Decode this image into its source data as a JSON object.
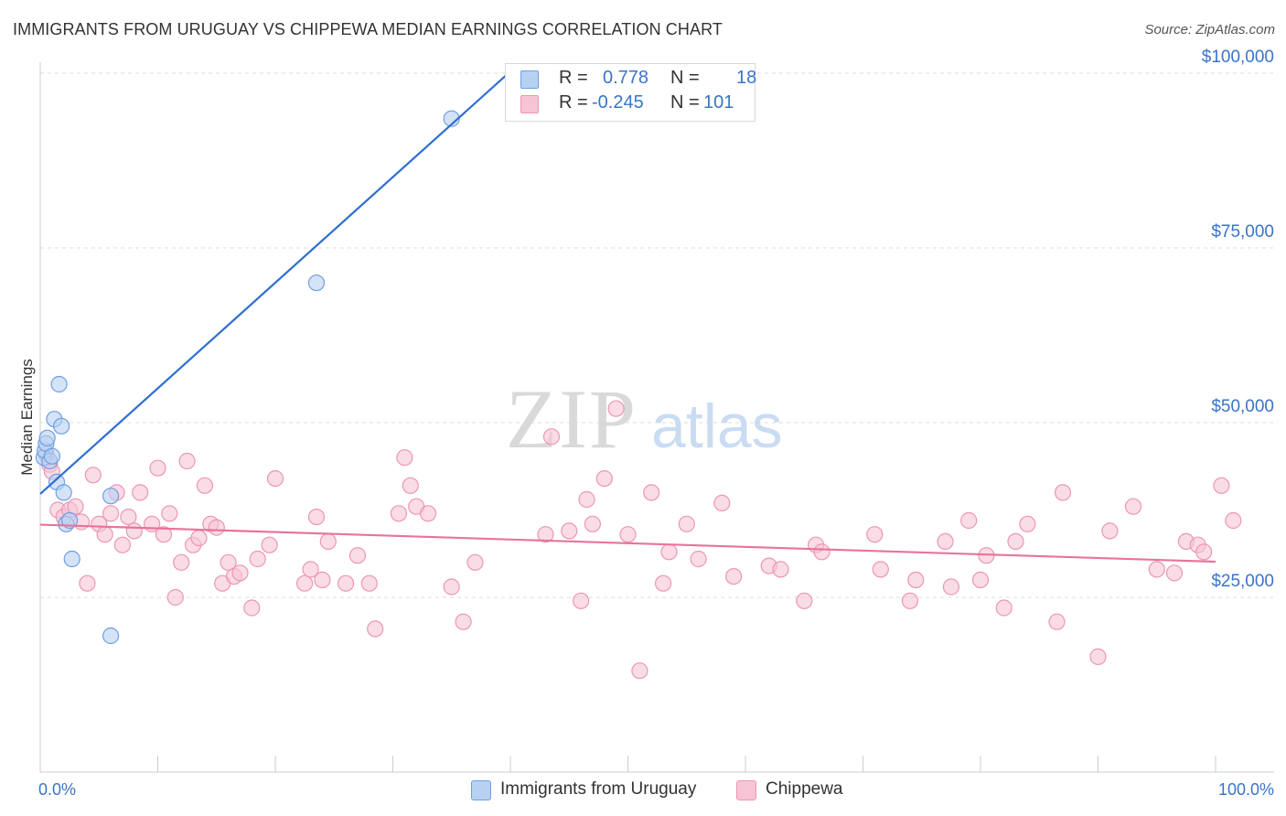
{
  "title": "IMMIGRANTS FROM URUGUAY VS CHIPPEWA MEDIAN EARNINGS CORRELATION CHART",
  "source": "Source: ZipAtlas.com",
  "watermark": {
    "zip": "ZIP",
    "atlas": "atlas"
  },
  "legend": {
    "r_label": "R =",
    "n_label": "N =",
    "rows": [
      {
        "r": "0.778",
        "n": "18"
      },
      {
        "r": "-0.245",
        "n": "101"
      }
    ]
  },
  "bottom_legend": [
    "Immigrants from Uruguay",
    "Chippewa"
  ],
  "colors": {
    "blue_fill": "#b8d1f3",
    "blue_stroke": "#6f9fe0",
    "blue_line": "#2f6fd0",
    "pink_fill": "#f7c4d5",
    "pink_stroke": "#ec96b4",
    "pink_line": "#e8739b",
    "axis_text": "#3a74c9"
  },
  "chart_data": {
    "type": "scatter",
    "ylabel": "Median Earnings",
    "x_tick_labels": [
      "0.0%",
      "100.0%"
    ],
    "y_tick_labels": [
      "$25,000",
      "$50,000",
      "$75,000",
      "$100,000"
    ],
    "y_ticks": [
      25000,
      50000,
      75000,
      100000
    ],
    "xlim": [
      0,
      100
    ],
    "ylim": [
      5000,
      107000
    ],
    "grid": true,
    "legend_position": "top-center",
    "series": [
      {
        "name": "Immigrants from Uruguay",
        "points": [
          [
            0.3,
            45000
          ],
          [
            0.4,
            46000
          ],
          [
            0.5,
            47000
          ],
          [
            0.6,
            47800
          ],
          [
            0.8,
            44500
          ],
          [
            1.0,
            45200
          ],
          [
            1.2,
            50500
          ],
          [
            1.4,
            41500
          ],
          [
            1.6,
            55500
          ],
          [
            1.8,
            49500
          ],
          [
            2.0,
            40000
          ],
          [
            2.2,
            35500
          ],
          [
            2.5,
            36000
          ],
          [
            2.7,
            30500
          ],
          [
            6.0,
            39500
          ],
          [
            6.0,
            19500
          ],
          [
            23.5,
            70000
          ],
          [
            35.0,
            93500
          ]
        ],
        "trend": {
          "x": [
            0,
            40.5
          ],
          "y": [
            39800,
            101000
          ]
        }
      },
      {
        "name": "Chippewa",
        "points": [
          [
            0.5,
            45500
          ],
          [
            0.8,
            44000
          ],
          [
            1.0,
            43000
          ],
          [
            1.5,
            37500
          ],
          [
            2.0,
            36500
          ],
          [
            2.5,
            37500
          ],
          [
            3.0,
            38000
          ],
          [
            3.5,
            35800
          ],
          [
            4.0,
            27000
          ],
          [
            4.5,
            42500
          ],
          [
            5.0,
            35500
          ],
          [
            5.5,
            34000
          ],
          [
            6.0,
            37000
          ],
          [
            6.5,
            40000
          ],
          [
            7.0,
            32500
          ],
          [
            7.5,
            36500
          ],
          [
            8.0,
            34500
          ],
          [
            8.5,
            40000
          ],
          [
            9.5,
            35500
          ],
          [
            10.0,
            43500
          ],
          [
            10.5,
            34000
          ],
          [
            11.0,
            37000
          ],
          [
            11.5,
            25000
          ],
          [
            12.0,
            30000
          ],
          [
            12.5,
            44500
          ],
          [
            13.0,
            32500
          ],
          [
            13.5,
            33500
          ],
          [
            14.0,
            41000
          ],
          [
            14.5,
            35500
          ],
          [
            15.0,
            35000
          ],
          [
            15.5,
            27000
          ],
          [
            16.0,
            30000
          ],
          [
            16.5,
            28000
          ],
          [
            17.0,
            28500
          ],
          [
            18.0,
            23500
          ],
          [
            18.5,
            30500
          ],
          [
            19.5,
            32500
          ],
          [
            20.0,
            42000
          ],
          [
            22.5,
            27000
          ],
          [
            23.0,
            29000
          ],
          [
            23.5,
            36500
          ],
          [
            24.0,
            27500
          ],
          [
            24.5,
            33000
          ],
          [
            26.0,
            27000
          ],
          [
            27.0,
            31000
          ],
          [
            28.0,
            27000
          ],
          [
            28.5,
            20500
          ],
          [
            30.5,
            37000
          ],
          [
            31.0,
            45000
          ],
          [
            31.5,
            41000
          ],
          [
            32.0,
            38000
          ],
          [
            33.0,
            37000
          ],
          [
            35.0,
            26500
          ],
          [
            36.0,
            21500
          ],
          [
            37.0,
            30000
          ],
          [
            43.0,
            34000
          ],
          [
            43.5,
            48000
          ],
          [
            45.0,
            34500
          ],
          [
            46.0,
            24500
          ],
          [
            46.5,
            39000
          ],
          [
            47.0,
            35500
          ],
          [
            48.0,
            42000
          ],
          [
            49.0,
            52000
          ],
          [
            50.0,
            34000
          ],
          [
            51.0,
            14500
          ],
          [
            52.0,
            40000
          ],
          [
            53.0,
            27000
          ],
          [
            53.5,
            31500
          ],
          [
            55.0,
            35500
          ],
          [
            56.0,
            30500
          ],
          [
            58.0,
            38500
          ],
          [
            59.0,
            28000
          ],
          [
            62.0,
            29500
          ],
          [
            63.0,
            29000
          ],
          [
            65.0,
            24500
          ],
          [
            66.0,
            32500
          ],
          [
            66.5,
            31500
          ],
          [
            71.0,
            34000
          ],
          [
            71.5,
            29000
          ],
          [
            74.0,
            24500
          ],
          [
            74.5,
            27500
          ],
          [
            77.0,
            33000
          ],
          [
            77.5,
            26500
          ],
          [
            79.0,
            36000
          ],
          [
            80.0,
            27500
          ],
          [
            80.5,
            31000
          ],
          [
            82.0,
            23500
          ],
          [
            83.0,
            33000
          ],
          [
            84.0,
            35500
          ],
          [
            86.5,
            21500
          ],
          [
            87.0,
            40000
          ],
          [
            90.0,
            16500
          ],
          [
            91.0,
            34500
          ],
          [
            93.0,
            38000
          ],
          [
            95.0,
            29000
          ],
          [
            96.5,
            28500
          ],
          [
            97.5,
            33000
          ],
          [
            98.5,
            32500
          ],
          [
            99.0,
            31500
          ],
          [
            100.5,
            41000
          ],
          [
            101.5,
            36000
          ]
        ],
        "trend": {
          "x": [
            0,
            100
          ],
          "y": [
            35400,
            30100
          ]
        }
      }
    ]
  }
}
